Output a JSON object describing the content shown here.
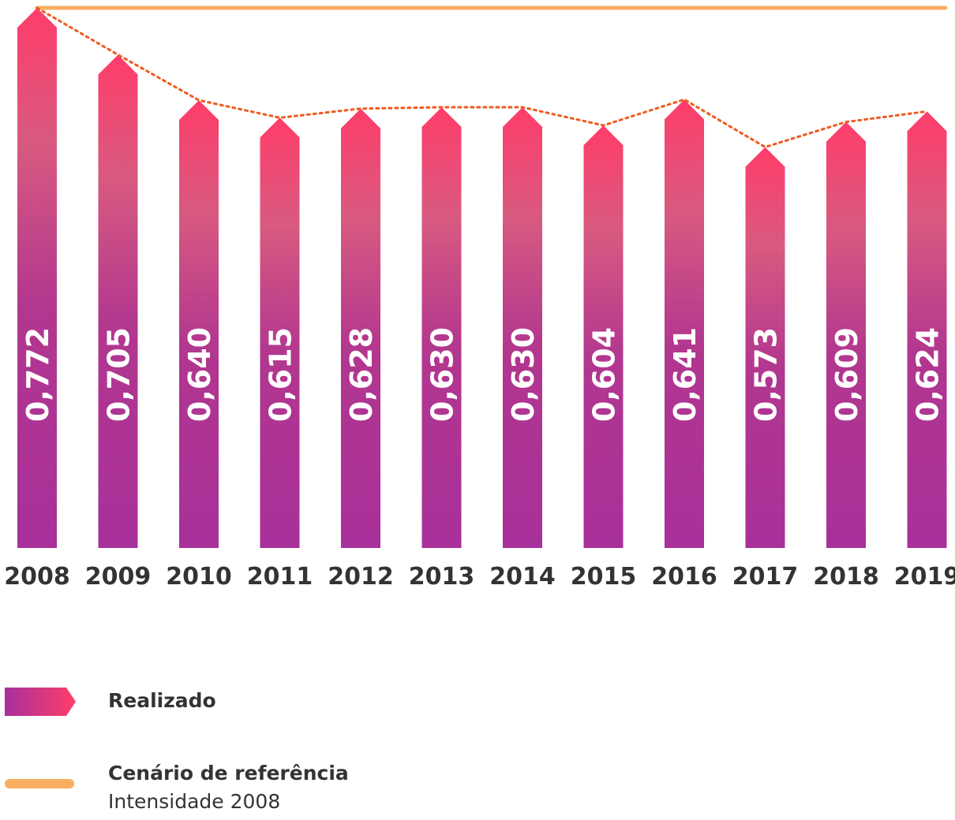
{
  "chart_data": {
    "type": "bar",
    "categories": [
      "2008",
      "2009",
      "2010",
      "2011",
      "2012",
      "2013",
      "2014",
      "2015",
      "2016",
      "2017",
      "2018",
      "2019"
    ],
    "series": [
      {
        "name": "Realizado",
        "values": [
          0.772,
          0.705,
          0.64,
          0.615,
          0.628,
          0.63,
          0.63,
          0.604,
          0.641,
          0.573,
          0.609,
          0.624
        ],
        "labels": [
          "0,772",
          "0,705",
          "0,640",
          "0,615",
          "0,628",
          "0,630",
          "0,630",
          "0,604",
          "0,641",
          "0,573",
          "0,609",
          "0,624"
        ],
        "gradient": [
          "#A8309A",
          "#D84F86",
          "#FF3D6A"
        ]
      },
      {
        "name": "Cenário de referência",
        "subtitle": "Intensidade 2008",
        "value": 0.772,
        "color": "#F9AE62"
      }
    ],
    "trend_line": {
      "style": "dotted",
      "color": "#F05A1F"
    },
    "title": "",
    "xlabel": "",
    "ylabel": "",
    "grid": false,
    "legend": "bottom-left"
  },
  "colors": {
    "label_text": "#333333",
    "value_text": "#ffffff"
  }
}
